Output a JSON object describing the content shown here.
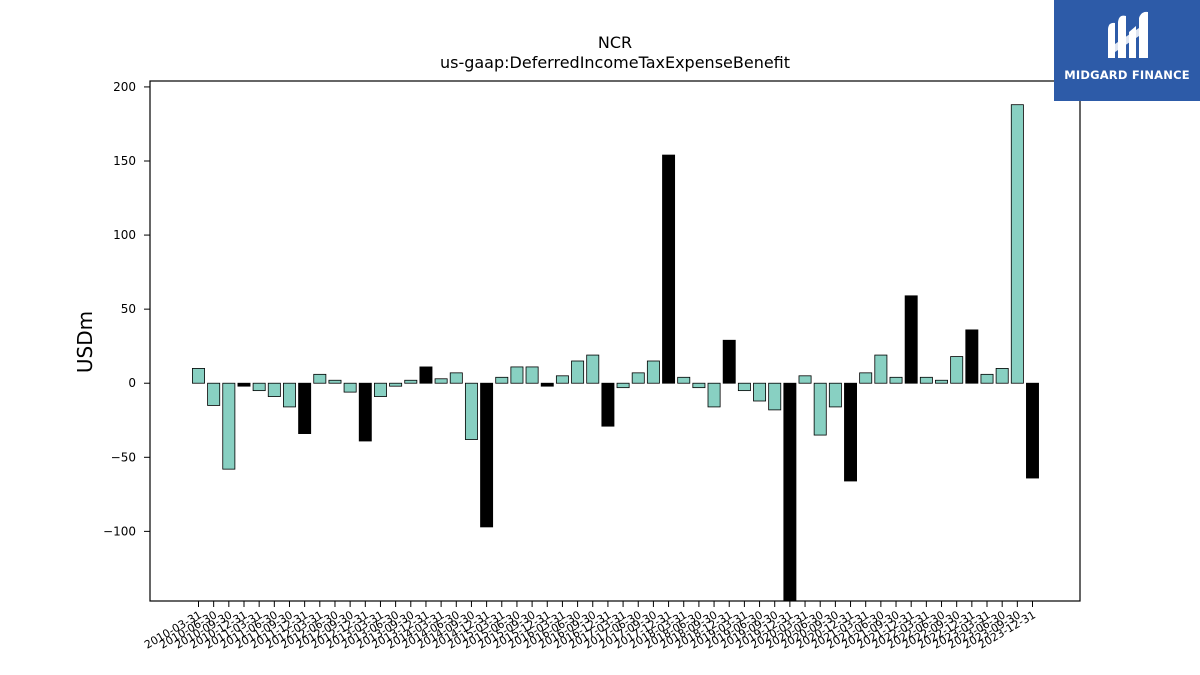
{
  "chart_data": {
    "type": "bar",
    "title": "NCR",
    "subtitle": "us-gaap:DeferredIncomeTaxExpenseBenefit",
    "xlabel": "",
    "ylabel": "USDm",
    "ylim": [
      -147,
      204
    ],
    "yticks": [
      -100,
      -50,
      0,
      50,
      100,
      150,
      200
    ],
    "ytick_labels": [
      "−100",
      "−50",
      "0",
      "50",
      "100",
      "150",
      "200"
    ],
    "grid": false,
    "colors": {
      "quarter": "#88d0c2",
      "year_end": "#000000"
    },
    "categories": [
      "2010-03-31",
      "2010-06-30",
      "2010-09-30",
      "2010-12-31",
      "2011-03-31",
      "2011-06-30",
      "2011-09-30",
      "2011-12-31",
      "2012-03-31",
      "2012-06-30",
      "2012-09-30",
      "2012-12-31",
      "2013-03-31",
      "2013-06-30",
      "2013-09-30",
      "2013-12-31",
      "2014-03-31",
      "2014-06-30",
      "2014-09-30",
      "2014-12-31",
      "2015-03-31",
      "2015-06-30",
      "2015-09-30",
      "2015-12-31",
      "2016-03-31",
      "2016-06-30",
      "2016-09-30",
      "2016-12-31",
      "2017-03-31",
      "2017-06-30",
      "2017-09-30",
      "2017-12-31",
      "2018-03-31",
      "2018-06-30",
      "2018-09-30",
      "2018-12-31",
      "2019-03-31",
      "2019-06-30",
      "2019-09-30",
      "2019-12-31",
      "2020-03-31",
      "2020-06-30",
      "2020-09-30",
      "2020-12-31",
      "2021-03-31",
      "2021-06-30",
      "2021-09-30",
      "2021-12-31",
      "2022-03-31",
      "2022-06-30",
      "2022-09-30",
      "2022-12-31",
      "2023-03-31",
      "2023-06-30",
      "2023-09-30",
      "2023-12-31"
    ],
    "values": [
      10,
      -15,
      -58,
      -2,
      -5,
      -9,
      -16,
      -34,
      6,
      2,
      -6,
      -39,
      -9,
      -2,
      2,
      11,
      3,
      7,
      -38,
      -97,
      4,
      11,
      11,
      -2,
      5,
      15,
      19,
      -29,
      -3,
      7,
      15,
      154,
      4,
      -3,
      -16,
      29,
      -5,
      -12,
      -18,
      -147,
      5,
      -35,
      -16,
      -66,
      7,
      19,
      4,
      59,
      4,
      2,
      18,
      36,
      6,
      10,
      188,
      -64
    ],
    "year_end_flags": [
      false,
      false,
      false,
      true,
      false,
      false,
      false,
      true,
      false,
      false,
      false,
      true,
      false,
      false,
      false,
      true,
      false,
      false,
      false,
      true,
      false,
      false,
      false,
      true,
      false,
      false,
      false,
      true,
      false,
      false,
      false,
      true,
      false,
      false,
      false,
      true,
      false,
      false,
      false,
      true,
      false,
      false,
      false,
      true,
      false,
      false,
      false,
      true,
      false,
      false,
      false,
      true,
      false,
      false,
      false,
      true
    ]
  },
  "logo": {
    "text": "MIDGARD FINANCE",
    "icon": "midgard-logo-icon",
    "bg_color": "#2d5ba8"
  }
}
